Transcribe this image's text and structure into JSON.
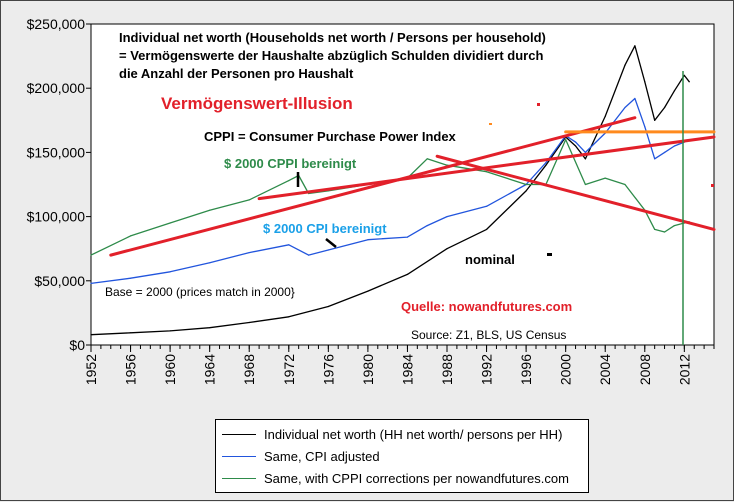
{
  "chart_data": {
    "type": "line",
    "title_lines": [
      "Individual net worth (Households net worth / Persons per household)",
      "=  Vermögenswerte der Haushalte abzüglich Schulden dividiert durch",
      "die Anzahl der Personen pro Haushalt"
    ],
    "headline": "Vermögenswert-Illusion",
    "cppi_definition": "CPPI = Consumer Purchase Power Index",
    "base_note": "Base = 2000 (prices match in 2000}",
    "source_quelle": "Quelle: nowandfutures.com",
    "source": "Source: Z1, BLS, US Census",
    "xlim": [
      1952,
      2015
    ],
    "ylim": [
      0,
      250000
    ],
    "x_ticks": [
      1952,
      1956,
      1960,
      1964,
      1968,
      1972,
      1976,
      1980,
      1984,
      1988,
      1992,
      1996,
      2000,
      2004,
      2008,
      2012
    ],
    "y_ticks": [
      0,
      50000,
      100000,
      150000,
      200000,
      250000
    ],
    "y_tick_labels": [
      "$0",
      "$50,000",
      "$100,000",
      "$150,000",
      "$200,000",
      "$250,000"
    ],
    "series": [
      {
        "name": "Individual net worth (HH net worth/ persons per HH)",
        "short_label": "nominal",
        "color": "#000000",
        "x": [
          1952,
          1956,
          1960,
          1964,
          1968,
          1972,
          1976,
          1980,
          1984,
          1988,
          1992,
          1996,
          1998,
          2000,
          2001,
          2002,
          2004,
          2006,
          2007,
          2008,
          2009,
          2010,
          2011,
          2012,
          2012.5
        ],
        "values": [
          8000,
          9500,
          11000,
          13500,
          17500,
          22000,
          30000,
          42000,
          55000,
          75000,
          90000,
          120000,
          140000,
          162000,
          155000,
          145000,
          178000,
          218000,
          233000,
          205000,
          175000,
          185000,
          198000,
          210000,
          205000
        ]
      },
      {
        "name": "Same, CPI adjusted",
        "short_label": "$ 2000 CPI bereinigt",
        "color": "#2255dd",
        "x": [
          1952,
          1956,
          1960,
          1964,
          1968,
          1972,
          1974,
          1976,
          1980,
          1984,
          1986,
          1988,
          1992,
          1996,
          1998,
          2000,
          2001,
          2002,
          2004,
          2006,
          2007,
          2008,
          2009,
          2010,
          2011,
          2012,
          2012.5
        ],
        "values": [
          48000,
          52000,
          57000,
          64000,
          72000,
          78000,
          70000,
          74000,
          82000,
          84000,
          93000,
          100000,
          108000,
          125000,
          142000,
          163000,
          158000,
          150000,
          165000,
          185000,
          192000,
          170000,
          145000,
          150000,
          155000,
          158000,
          160000
        ]
      },
      {
        "name": "Same, with CPPI corrections per nowandfutures.com",
        "short_label": "$ 2000 CPPI bereinigt",
        "color": "#2e8b4a",
        "x": [
          1952,
          1956,
          1960,
          1964,
          1968,
          1972,
          1973,
          1974,
          1976,
          1980,
          1984,
          1986,
          1988,
          1992,
          1996,
          1998,
          2000,
          2002,
          2004,
          2006,
          2008,
          2009,
          2010,
          2011,
          2012,
          2012.5
        ],
        "values": [
          70000,
          85000,
          95000,
          105000,
          113000,
          128000,
          132000,
          118000,
          120000,
          125000,
          130000,
          145000,
          140000,
          135000,
          125000,
          125000,
          160000,
          125000,
          130000,
          125000,
          105000,
          90000,
          88000,
          93000,
          95000,
          96000
        ]
      }
    ],
    "trend_lines": [
      {
        "color": "#e2202a",
        "x": [
          1954,
          2007
        ],
        "y": [
          70000,
          177000
        ]
      },
      {
        "color": "#e2202a",
        "x": [
          1969,
          2015
        ],
        "y": [
          114000,
          162000
        ]
      },
      {
        "color": "#e2202a",
        "x": [
          1987,
          2015
        ],
        "y": [
          147000,
          90000
        ]
      },
      {
        "color": "#ff8a1e",
        "x": [
          2000,
          2015
        ],
        "y": [
          166000,
          166000
        ]
      }
    ]
  }
}
